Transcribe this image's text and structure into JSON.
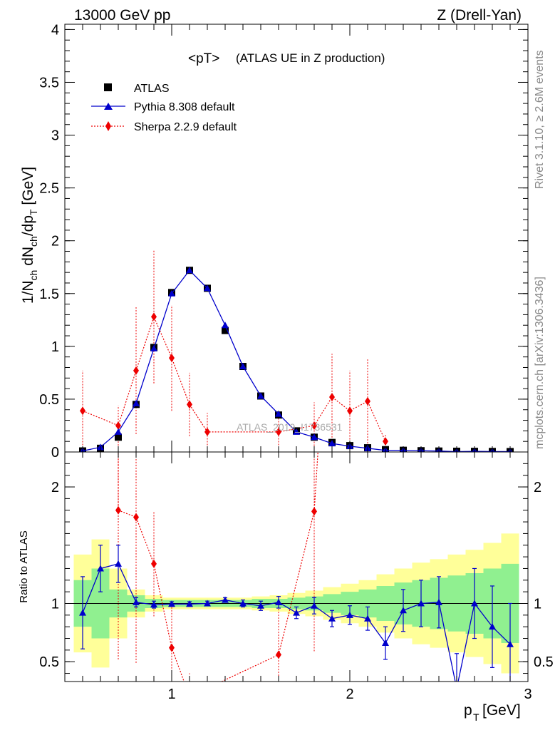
{
  "header": {
    "left": "13000 GeV pp",
    "right": "Z (Drell-Yan)"
  },
  "side_labels": {
    "rivet": "Rivet 3.1.10, ≥ 2.6M events",
    "mcplots": "mcplots.cern.ch [arXiv:1306.3436]"
  },
  "watermark": "ATLAS_2019_I1736531",
  "chart_data": {
    "type": "line",
    "title_main": "<pT>",
    "title_sub": "(ATLAS UE in Z production)",
    "xlabel_main": "p",
    "xlabel_sub": "T",
    "xlabel_unit": "[GeV]",
    "ylabel": "1/N_ch dN_ch/dp_T [GeV]",
    "ylabel_parts": [
      "1/N",
      "ch",
      " dN",
      "ch",
      "/dp",
      "T",
      " [GeV]"
    ],
    "ratio_ylabel": "Ratio to ATLAS",
    "xlim": [
      0.4,
      3.0
    ],
    "ylim_main": [
      0,
      4.05
    ],
    "ylim_ratio": [
      0.33,
      2.3
    ],
    "x_ticks": [
      "1",
      "2",
      "3"
    ],
    "y_ticks_main": [
      "0",
      "0.5",
      "1",
      "1.5",
      "2",
      "2.5",
      "3",
      "3.5",
      "4"
    ],
    "y_ticks_ratio": [
      "0.5",
      "1",
      "2"
    ],
    "legend_position": "top-left",
    "colors": {
      "data": "#000000",
      "pythia": "#0000cc",
      "sherpa": "#ee0000",
      "band_inner": "#90f090",
      "band_outer": "#ffff99"
    },
    "x": [
      0.5,
      0.6,
      0.7,
      0.8,
      0.9,
      1.0,
      1.1,
      1.2,
      1.3,
      1.4,
      1.5,
      1.6,
      1.7,
      1.8,
      1.9,
      2.0,
      2.1,
      2.2,
      2.3,
      2.4,
      2.5,
      2.6,
      2.7,
      2.8,
      2.9
    ],
    "series": [
      {
        "name": "ATLAS",
        "values": [
          0.01,
          0.035,
          0.14,
          0.45,
          0.99,
          1.51,
          1.72,
          1.55,
          1.15,
          0.81,
          0.53,
          0.35,
          0.2,
          0.14,
          0.09,
          0.06,
          0.04,
          0.022,
          0.016,
          0.012,
          0.009,
          0.007,
          0.006,
          0.005,
          0.004
        ]
      },
      {
        "name": "Pythia 8.308 default",
        "values": [
          0.01,
          0.045,
          0.19,
          0.46,
          0.98,
          1.5,
          1.72,
          1.55,
          1.2,
          0.81,
          0.53,
          0.36,
          0.19,
          0.14,
          0.08,
          0.055,
          0.035,
          0.015,
          0.015,
          0.012,
          0.009,
          0.003,
          0.006,
          0.004,
          0.003
        ],
        "ratio": [
          0.92,
          1.3,
          1.34,
          1.01,
          0.99,
          0.995,
          0.995,
          1.0,
          1.03,
          1.0,
          0.98,
          1.01,
          0.92,
          0.98,
          0.87,
          0.9,
          0.87,
          0.66,
          0.94,
          1.0,
          1.01,
          0.27,
          1.0,
          0.8,
          0.65
        ],
        "ratio_err": [
          0.31,
          0.2,
          0.16,
          0.04,
          0.03,
          0.02,
          0.02,
          0.02,
          0.02,
          0.03,
          0.04,
          0.05,
          0.05,
          0.07,
          0.07,
          0.08,
          0.1,
          0.14,
          0.18,
          0.2,
          0.22,
          0.3,
          0.3,
          0.35,
          0.35
        ]
      },
      {
        "name": "Sherpa 2.2.9 default",
        "values": [
          0.39,
          0.0,
          0.25,
          0.77,
          1.28,
          0.89,
          0.45,
          0.19,
          null,
          null,
          null,
          0.19,
          null,
          0.25,
          0.52,
          0.39,
          0.48,
          0.1,
          null,
          null,
          null,
          null,
          null,
          null,
          null
        ],
        "errors": [
          0.38,
          0.0,
          0.19,
          0.6,
          0.63,
          0.5,
          0.3,
          0.18,
          null,
          null,
          null,
          0.18,
          null,
          0.22,
          0.41,
          0.38,
          0.4,
          0.06,
          null,
          null,
          null,
          null,
          null,
          null,
          null
        ],
        "ratio": [
          null,
          null,
          1.8,
          1.74,
          1.34,
          0.62,
          0.2,
          null,
          null,
          null,
          null,
          0.56,
          null,
          1.79,
          null,
          null,
          null,
          null,
          null,
          null,
          null,
          null,
          null,
          null,
          null
        ],
        "ratio_err": [
          null,
          null,
          1.28,
          1.25,
          0.45,
          0.35,
          0.2,
          null,
          null,
          null,
          null,
          0.5,
          null,
          1.2,
          null,
          null,
          null,
          null,
          null,
          null,
          null,
          null,
          null,
          null,
          null
        ]
      }
    ],
    "band_inner": [
      0.2,
      0.3,
      0.12,
      0.07,
      0.04,
      0.03,
      0.03,
      0.03,
      0.03,
      0.03,
      0.04,
      0.04,
      0.05,
      0.06,
      0.08,
      0.1,
      0.12,
      0.15,
      0.18,
      0.2,
      0.22,
      0.24,
      0.26,
      0.3,
      0.34
    ],
    "band_outer": [
      0.42,
      0.55,
      0.3,
      0.12,
      0.07,
      0.05,
      0.05,
      0.05,
      0.05,
      0.05,
      0.06,
      0.07,
      0.09,
      0.11,
      0.14,
      0.17,
      0.2,
      0.25,
      0.3,
      0.35,
      0.38,
      0.42,
      0.46,
      0.52,
      0.6
    ]
  }
}
